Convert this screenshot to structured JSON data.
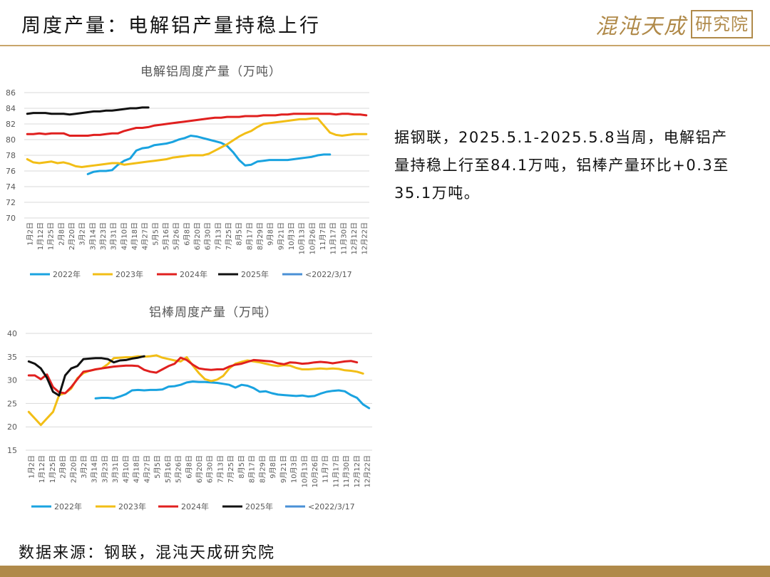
{
  "page": {
    "title": "周度产量：电解铝产量持稳上行",
    "logo_main": "混沌天成",
    "logo_box": "研究院",
    "description": "据钢联，2025.5.1-2025.5.8当周，电解铝产量持稳上行至84.1万吨，铝棒产量环比+0.3至35.1万吨。",
    "source": "数据来源：钢联，混沌天成研究院",
    "accent_color": "#b08a4a"
  },
  "chart_data": [
    {
      "type": "line",
      "title": "电解铝周度产量（万吨）",
      "ylim": [
        70,
        86
      ],
      "yticks": [
        70,
        72,
        74,
        76,
        78,
        80,
        82,
        84,
        86
      ],
      "grid": true,
      "legend_position": "bottom",
      "x_labels": [
        "1月2日",
        "1月12日",
        "1月25日",
        "2月8日",
        "2月20日",
        "3月2日",
        "3月14日",
        "3月23日",
        "3月31日",
        "4月10日",
        "4月18日",
        "4月27日",
        "5月5日",
        "5月16日",
        "5月26日",
        "6月8日",
        "6月20日",
        "6月30日",
        "7月13日",
        "7月25日",
        "8月5日",
        "8月17日",
        "8月29日",
        "9月8日",
        "9月21日",
        "10月3日",
        "10月13日",
        "10月26日",
        "11月7日",
        "11月17日",
        "11月30日",
        "12月12日",
        "12月22日"
      ],
      "series": [
        {
          "name": "2022年",
          "color": "#1aa3e0",
          "start": 10,
          "values": [
            75.6,
            75.9,
            76.0,
            76.0,
            76.1,
            76.8,
            77.3,
            77.6,
            78.6,
            78.9,
            79.0,
            79.3,
            79.4,
            79.5,
            79.7,
            80.0,
            80.2,
            80.5,
            80.4,
            80.2,
            80.0,
            79.8,
            79.6,
            79.2,
            78.4,
            77.4,
            76.7,
            76.8,
            77.2,
            77.3,
            77.4,
            77.4,
            77.4,
            77.4,
            77.5,
            77.6,
            77.7,
            77.8,
            78.0,
            78.1,
            78.1
          ]
        },
        {
          "name": "2023年",
          "color": "#f2be16",
          "start": 0,
          "values": [
            77.5,
            77.1,
            77.0,
            77.1,
            77.2,
            77.0,
            77.1,
            76.9,
            76.6,
            76.5,
            76.6,
            76.7,
            76.8,
            76.9,
            77.0,
            77.0,
            76.8,
            76.9,
            77.0,
            77.1,
            77.2,
            77.3,
            77.4,
            77.5,
            77.7,
            77.8,
            77.9,
            78.0,
            78.0,
            78.0,
            78.2,
            78.6,
            79.0,
            79.4,
            79.9,
            80.4,
            80.8,
            81.1,
            81.6,
            82.0,
            82.1,
            82.2,
            82.3,
            82.4,
            82.5,
            82.6,
            82.6,
            82.7,
            82.7,
            81.8,
            80.9,
            80.6,
            80.5,
            80.6,
            80.7,
            80.7,
            80.7
          ]
        },
        {
          "name": "2024年",
          "color": "#e0201f",
          "start": 0,
          "values": [
            80.7,
            80.7,
            80.8,
            80.7,
            80.8,
            80.8,
            80.8,
            80.5,
            80.5,
            80.5,
            80.5,
            80.6,
            80.6,
            80.7,
            80.8,
            80.8,
            81.1,
            81.3,
            81.5,
            81.5,
            81.6,
            81.8,
            81.9,
            82.0,
            82.1,
            82.2,
            82.3,
            82.4,
            82.5,
            82.6,
            82.7,
            82.8,
            82.8,
            82.9,
            82.9,
            82.9,
            83.0,
            83.0,
            83.0,
            83.1,
            83.1,
            83.1,
            83.2,
            83.2,
            83.3,
            83.3,
            83.3,
            83.3,
            83.3,
            83.3,
            83.3,
            83.2,
            83.3,
            83.3,
            83.2,
            83.2,
            83.1
          ]
        },
        {
          "name": "2025年",
          "color": "#111111",
          "start": 0,
          "values": [
            83.3,
            83.4,
            83.4,
            83.4,
            83.3,
            83.3,
            83.3,
            83.2,
            83.3,
            83.4,
            83.5,
            83.6,
            83.6,
            83.7,
            83.7,
            83.8,
            83.9,
            84.0,
            84.0,
            84.1,
            84.1
          ]
        },
        {
          "name": "<2022/3/17",
          "color": "#4a90d6",
          "start": 0,
          "values": []
        }
      ]
    },
    {
      "type": "line",
      "title": "铝棒周度产量（万吨）",
      "ylim": [
        15,
        40
      ],
      "yticks": [
        15,
        20,
        25,
        30,
        35,
        40
      ],
      "grid": true,
      "legend_position": "bottom",
      "x_labels": [
        "1月2日",
        "1月12日",
        "1月25日",
        "2月8日",
        "2月20日",
        "3月2日",
        "3月14日",
        "3月23日",
        "3月31日",
        "4月10日",
        "4月18日",
        "4月27日",
        "5月5日",
        "5月16日",
        "5月26日",
        "6月8日",
        "6月20日",
        "6月30日",
        "7月13日",
        "7月25日",
        "8月5日",
        "8月17日",
        "8月29日",
        "9月8日",
        "9月21日",
        "10月3日",
        "10月13日",
        "10月26日",
        "11月7日",
        "11月17日",
        "11月30日",
        "12月12日",
        "12月22日"
      ],
      "series": [
        {
          "name": "2022年",
          "color": "#1aa3e0",
          "start": 11,
          "values": [
            26.1,
            26.2,
            26.2,
            26.1,
            26.5,
            27.0,
            27.8,
            27.9,
            27.8,
            27.9,
            27.9,
            28.0,
            28.6,
            28.7,
            29.0,
            29.5,
            29.7,
            29.6,
            29.6,
            29.5,
            29.4,
            29.2,
            29.0,
            28.4,
            29.0,
            28.8,
            28.3,
            27.5,
            27.6,
            27.2,
            26.9,
            26.8,
            26.7,
            26.6,
            26.7,
            26.5,
            26.6,
            27.1,
            27.5,
            27.7,
            27.8,
            27.6,
            26.8,
            26.2,
            24.8,
            24.0
          ]
        },
        {
          "name": "2023年",
          "color": "#f2be16",
          "start": 0,
          "values": [
            23.2,
            21.8,
            20.4,
            21.8,
            23.2,
            26.8,
            27.2,
            28.2,
            30.4,
            31.5,
            32.0,
            32.3,
            32.5,
            33.4,
            34.7,
            34.8,
            34.9,
            34.9,
            35.1,
            35.0,
            35.1,
            35.3,
            34.8,
            34.5,
            34.2,
            34.0,
            34.9,
            33.1,
            31.5,
            30.2,
            29.8,
            30.1,
            30.9,
            32.5,
            33.5,
            33.9,
            34.2,
            34.0,
            33.8,
            33.5,
            33.2,
            33.0,
            33.2,
            33.1,
            32.6,
            32.3,
            32.3,
            32.4,
            32.5,
            32.4,
            32.5,
            32.4,
            32.1,
            32.0,
            31.8,
            31.4
          ]
        },
        {
          "name": "2024年",
          "color": "#e0201f",
          "start": 0,
          "values": [
            31.0,
            31.0,
            30.2,
            31.2,
            28.5,
            27.4,
            27.2,
            28.5,
            30.2,
            31.8,
            32.0,
            32.3,
            32.5,
            32.7,
            32.9,
            33.0,
            33.1,
            33.1,
            33.0,
            32.2,
            31.8,
            31.6,
            32.3,
            33.0,
            33.5,
            34.8,
            34.3,
            33.3,
            32.5,
            32.3,
            32.2,
            32.3,
            32.3,
            32.9,
            33.3,
            33.5,
            33.9,
            34.3,
            34.2,
            34.1,
            34.0,
            33.6,
            33.4,
            33.8,
            33.7,
            33.5,
            33.6,
            33.8,
            33.9,
            33.8,
            33.6,
            33.8,
            34.0,
            34.1,
            33.8
          ]
        },
        {
          "name": "2025年",
          "color": "#111111",
          "start": 0,
          "values": [
            34.0,
            33.5,
            32.5,
            30.5,
            27.5,
            26.7,
            31.0,
            32.5,
            33.0,
            34.5,
            34.6,
            34.7,
            34.7,
            34.5,
            33.8,
            34.2,
            34.3,
            34.6,
            34.8,
            35.1
          ]
        },
        {
          "name": "<2022/3/17",
          "color": "#4a90d6",
          "start": 0,
          "values": []
        }
      ]
    }
  ]
}
